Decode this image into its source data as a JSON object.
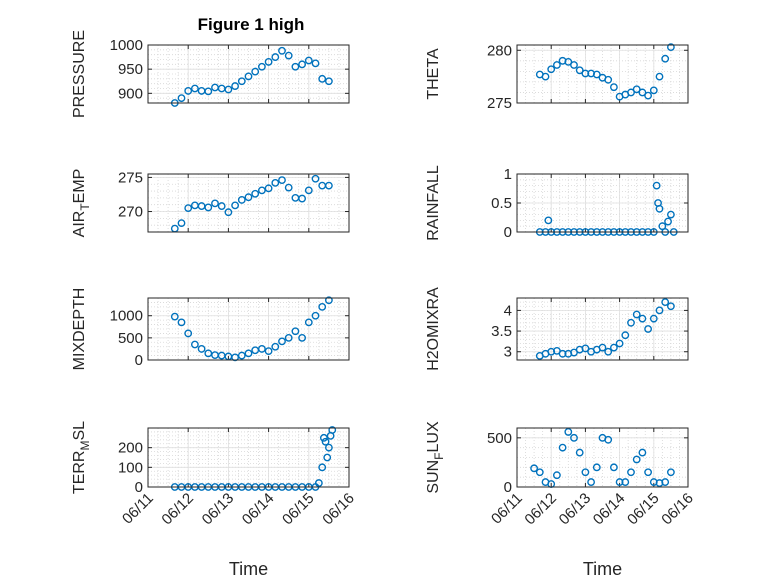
{
  "figure": {
    "title": "Figure 1 high"
  },
  "chart_data": [
    {
      "type": "scatter",
      "ylabel": "PRESSURE",
      "xlabel": "",
      "xtick_labels_visible": false,
      "xlim": [
        "06/11",
        "06/16"
      ],
      "ylim": [
        880,
        1000
      ],
      "yticks": [
        900,
        950,
        1000
      ],
      "grid": true,
      "marker": "open-circle",
      "color": "#0072bd",
      "x": [
        "06/11 16:00",
        "06/11 20:00",
        "06/12 00:00",
        "06/12 04:00",
        "06/12 08:00",
        "06/12 12:00",
        "06/12 16:00",
        "06/12 20:00",
        "06/13 00:00",
        "06/13 04:00",
        "06/13 08:00",
        "06/13 12:00",
        "06/13 16:00",
        "06/13 20:00",
        "06/14 00:00",
        "06/14 04:00",
        "06/14 08:00",
        "06/14 12:00",
        "06/14 16:00",
        "06/14 20:00",
        "06/15 00:00",
        "06/15 04:00",
        "06/15 08:00",
        "06/15 12:00"
      ],
      "y": [
        880,
        890,
        905,
        910,
        905,
        904,
        912,
        910,
        908,
        915,
        925,
        935,
        945,
        955,
        965,
        975,
        988,
        978,
        955,
        960,
        968,
        962,
        930,
        925
      ]
    },
    {
      "type": "scatter",
      "ylabel": "THETA",
      "xlabel": "",
      "xtick_labels_visible": false,
      "xlim": [
        "06/11",
        "06/16"
      ],
      "ylim": [
        275,
        280.5
      ],
      "yticks": [
        275,
        280
      ],
      "grid": true,
      "marker": "open-circle",
      "color": "#0072bd",
      "x": [
        "06/11 16:00",
        "06/11 20:00",
        "06/12 00:00",
        "06/12 04:00",
        "06/12 08:00",
        "06/12 12:00",
        "06/12 16:00",
        "06/12 20:00",
        "06/13 00:00",
        "06/13 04:00",
        "06/13 08:00",
        "06/13 12:00",
        "06/13 16:00",
        "06/13 20:00",
        "06/14 00:00",
        "06/14 04:00",
        "06/14 08:00",
        "06/14 12:00",
        "06/14 16:00",
        "06/14 20:00",
        "06/15 00:00",
        "06/15 04:00",
        "06/15 08:00",
        "06/15 12:00"
      ],
      "y": [
        277.7,
        277.5,
        278.2,
        278.6,
        279.0,
        278.9,
        278.6,
        278.1,
        277.8,
        277.8,
        277.7,
        277.4,
        277.2,
        276.5,
        275.6,
        275.8,
        276.0,
        276.3,
        276.0,
        275.7,
        276.2,
        277.5,
        279.2,
        280.3
      ]
    },
    {
      "type": "scatter",
      "ylabel": "AIR_TEMP",
      "xlabel": "",
      "xtick_labels_visible": false,
      "xlim": [
        "06/11",
        "06/16"
      ],
      "ylim": [
        267,
        275.5
      ],
      "yticks": [
        270,
        275
      ],
      "grid": true,
      "marker": "open-circle",
      "color": "#0072bd",
      "x": [
        "06/11 16:00",
        "06/11 20:00",
        "06/12 00:00",
        "06/12 04:00",
        "06/12 08:00",
        "06/12 12:00",
        "06/12 16:00",
        "06/12 20:00",
        "06/13 00:00",
        "06/13 04:00",
        "06/13 08:00",
        "06/13 12:00",
        "06/13 16:00",
        "06/13 20:00",
        "06/14 00:00",
        "06/14 04:00",
        "06/14 08:00",
        "06/14 12:00",
        "06/14 16:00",
        "06/14 20:00",
        "06/15 00:00",
        "06/15 04:00",
        "06/15 08:00",
        "06/15 12:00"
      ],
      "y": [
        267.5,
        268.3,
        270.5,
        270.9,
        270.8,
        270.6,
        271.2,
        270.8,
        269.9,
        270.9,
        271.7,
        272.1,
        272.6,
        273.1,
        273.4,
        274.2,
        274.6,
        273.5,
        272.0,
        271.9,
        273.1,
        274.8,
        273.8,
        273.8
      ]
    },
    {
      "type": "scatter",
      "ylabel": "RAINFALL",
      "xlabel": "",
      "xtick_labels_visible": false,
      "xlim": [
        "06/11",
        "06/16"
      ],
      "ylim": [
        0,
        1
      ],
      "yticks": [
        0,
        0.5,
        1
      ],
      "grid": true,
      "marker": "open-circle",
      "color": "#0072bd",
      "x": [
        "06/11 16:00",
        "06/11 20:00",
        "06/11 22:00",
        "06/12 00:00",
        "06/12 04:00",
        "06/12 08:00",
        "06/12 12:00",
        "06/12 16:00",
        "06/12 20:00",
        "06/13 00:00",
        "06/13 04:00",
        "06/13 08:00",
        "06/13 12:00",
        "06/13 16:00",
        "06/13 20:00",
        "06/14 00:00",
        "06/14 04:00",
        "06/14 08:00",
        "06/14 12:00",
        "06/14 16:00",
        "06/14 20:00",
        "06/15 00:00",
        "06/15 02:00",
        "06/15 03:00",
        "06/15 04:00",
        "06/15 06:00",
        "06/15 08:00",
        "06/15 10:00",
        "06/15 12:00",
        "06/15 14:00"
      ],
      "y": [
        0,
        0,
        0.2,
        0,
        0,
        0,
        0,
        0,
        0,
        0,
        0,
        0,
        0,
        0,
        0,
        0,
        0,
        0,
        0,
        0,
        0,
        0,
        0.8,
        0.5,
        0.4,
        0.1,
        0,
        0.18,
        0.3,
        0
      ]
    },
    {
      "type": "scatter",
      "ylabel": "MIXDEPTH",
      "xlabel": "",
      "xtick_labels_visible": false,
      "xlim": [
        "06/11",
        "06/16"
      ],
      "ylim": [
        0,
        1400
      ],
      "yticks": [
        0,
        500,
        1000
      ],
      "grid": true,
      "marker": "open-circle",
      "color": "#0072bd",
      "x": [
        "06/11 16:00",
        "06/11 20:00",
        "06/12 00:00",
        "06/12 04:00",
        "06/12 08:00",
        "06/12 12:00",
        "06/12 16:00",
        "06/12 20:00",
        "06/13 00:00",
        "06/13 04:00",
        "06/13 08:00",
        "06/13 12:00",
        "06/13 16:00",
        "06/13 20:00",
        "06/14 00:00",
        "06/14 04:00",
        "06/14 08:00",
        "06/14 12:00",
        "06/14 16:00",
        "06/14 20:00",
        "06/15 00:00",
        "06/15 04:00",
        "06/15 08:00",
        "06/15 12:00"
      ],
      "y": [
        980,
        850,
        600,
        350,
        250,
        150,
        110,
        100,
        80,
        60,
        100,
        150,
        220,
        250,
        200,
        300,
        420,
        500,
        650,
        500,
        850,
        1000,
        1200,
        1350
      ]
    },
    {
      "type": "scatter",
      "ylabel": "H2OMIXRA",
      "xlabel": "",
      "xtick_labels_visible": false,
      "xlim": [
        "06/11",
        "06/16"
      ],
      "ylim": [
        2.8,
        4.3
      ],
      "yticks": [
        3,
        3.5,
        4
      ],
      "grid": true,
      "marker": "open-circle",
      "color": "#0072bd",
      "x": [
        "06/11 16:00",
        "06/11 20:00",
        "06/12 00:00",
        "06/12 04:00",
        "06/12 08:00",
        "06/12 12:00",
        "06/12 16:00",
        "06/12 20:00",
        "06/13 00:00",
        "06/13 04:00",
        "06/13 08:00",
        "06/13 12:00",
        "06/13 16:00",
        "06/13 20:00",
        "06/14 00:00",
        "06/14 04:00",
        "06/14 08:00",
        "06/14 12:00",
        "06/14 16:00",
        "06/14 20:00",
        "06/15 00:00",
        "06/15 04:00",
        "06/15 08:00",
        "06/15 12:00"
      ],
      "y": [
        2.9,
        2.95,
        3.0,
        3.02,
        2.95,
        2.95,
        2.98,
        3.05,
        3.08,
        3.0,
        3.05,
        3.1,
        3.0,
        3.1,
        3.2,
        3.4,
        3.7,
        3.9,
        3.8,
        3.55,
        3.8,
        4.0,
        4.2,
        4.1
      ]
    },
    {
      "type": "scatter",
      "ylabel": "TERR_MSL",
      "xlabel": "Time",
      "xtick_labels_visible": true,
      "xlim": [
        "06/11",
        "06/16"
      ],
      "xticks": [
        "06/11",
        "06/12",
        "06/13",
        "06/14",
        "06/15",
        "06/16"
      ],
      "ylim": [
        0,
        300
      ],
      "yticks": [
        0,
        100,
        200
      ],
      "grid": true,
      "marker": "open-circle",
      "color": "#0072bd",
      "x": [
        "06/11 16:00",
        "06/11 20:00",
        "06/12 00:00",
        "06/12 04:00",
        "06/12 08:00",
        "06/12 12:00",
        "06/12 16:00",
        "06/12 20:00",
        "06/13 00:00",
        "06/13 04:00",
        "06/13 08:00",
        "06/13 12:00",
        "06/13 16:00",
        "06/13 20:00",
        "06/14 00:00",
        "06/14 04:00",
        "06/14 08:00",
        "06/14 12:00",
        "06/14 16:00",
        "06/14 20:00",
        "06/15 00:00",
        "06/15 04:00",
        "06/15 06:00",
        "06/15 08:00",
        "06/15 09:00",
        "06/15 10:00",
        "06/15 11:00",
        "06/15 12:00",
        "06/15 13:00",
        "06/15 14:00"
      ],
      "y": [
        0,
        0,
        0,
        0,
        0,
        0,
        0,
        0,
        0,
        0,
        0,
        0,
        0,
        0,
        0,
        0,
        0,
        0,
        0,
        0,
        0,
        0,
        20,
        100,
        250,
        230,
        150,
        200,
        260,
        290
      ]
    },
    {
      "type": "scatter",
      "ylabel": "SUN_FLUX",
      "xlabel": "Time",
      "xtick_labels_visible": true,
      "xlim": [
        "06/11",
        "06/16"
      ],
      "xticks": [
        "06/11",
        "06/12",
        "06/13",
        "06/14",
        "06/15",
        "06/16"
      ],
      "ylim": [
        0,
        600
      ],
      "yticks": [
        0,
        500
      ],
      "grid": true,
      "marker": "open-circle",
      "color": "#0072bd",
      "x": [
        "06/11 12:00",
        "06/11 16:00",
        "06/11 20:00",
        "06/12 00:00",
        "06/12 04:00",
        "06/12 08:00",
        "06/12 12:00",
        "06/12 16:00",
        "06/12 20:00",
        "06/13 00:00",
        "06/13 04:00",
        "06/13 08:00",
        "06/13 12:00",
        "06/13 16:00",
        "06/13 20:00",
        "06/14 00:00",
        "06/14 04:00",
        "06/14 08:00",
        "06/14 12:00",
        "06/14 16:00",
        "06/14 20:00",
        "06/15 00:00",
        "06/15 04:00",
        "06/15 08:00",
        "06/15 12:00"
      ],
      "y": [
        190,
        150,
        50,
        30,
        120,
        400,
        560,
        500,
        350,
        150,
        50,
        200,
        500,
        480,
        200,
        50,
        50,
        150,
        280,
        350,
        150,
        50,
        40,
        50,
        150
      ]
    }
  ]
}
